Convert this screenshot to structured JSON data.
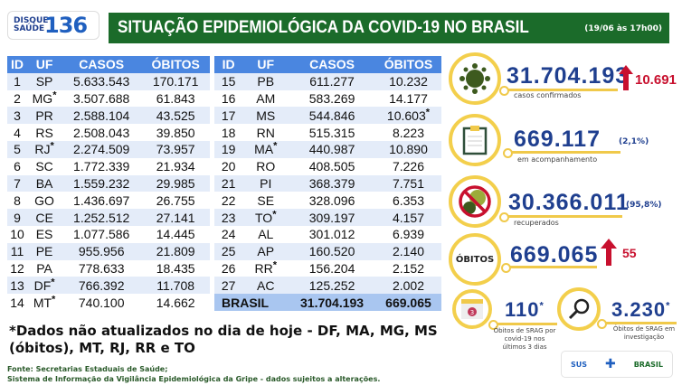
{
  "header": {
    "logo_text": "DISQUE SAÚDE",
    "logo_number": "136",
    "title": "SITUAÇÃO EPIDEMIOLÓGICA DA COVID-19 NO BRASIL",
    "date": "(19/06 às 17h00)"
  },
  "table": {
    "columns": [
      "ID",
      "UF",
      "CASOS",
      "ÓBITOS"
    ],
    "left": [
      {
        "id": "1",
        "uf": "SP",
        "casos": "5.633.543",
        "obitos": "170.171"
      },
      {
        "id": "2",
        "uf": "MG",
        "uf_mark": "*",
        "casos": "3.507.688",
        "obitos": "61.843"
      },
      {
        "id": "3",
        "uf": "PR",
        "casos": "2.588.104",
        "obitos": "43.525"
      },
      {
        "id": "4",
        "uf": "RS",
        "casos": "2.508.043",
        "obitos": "39.850"
      },
      {
        "id": "5",
        "uf": "RJ",
        "uf_mark": "*",
        "casos": "2.274.509",
        "obitos": "73.957"
      },
      {
        "id": "6",
        "uf": "SC",
        "casos": "1.772.339",
        "obitos": "21.934"
      },
      {
        "id": "7",
        "uf": "BA",
        "casos": "1.559.232",
        "obitos": "29.985"
      },
      {
        "id": "8",
        "uf": "GO",
        "casos": "1.436.697",
        "obitos": "26.755"
      },
      {
        "id": "9",
        "uf": "CE",
        "casos": "1.252.512",
        "obitos": "27.141"
      },
      {
        "id": "10",
        "uf": "ES",
        "casos": "1.077.586",
        "obitos": "14.445"
      },
      {
        "id": "11",
        "uf": "PE",
        "casos": "955.956",
        "obitos": "21.809"
      },
      {
        "id": "12",
        "uf": "PA",
        "casos": "778.633",
        "obitos": "18.435"
      },
      {
        "id": "13",
        "uf": "DF",
        "uf_mark": "*",
        "casos": "766.392",
        "obitos": "11.708"
      },
      {
        "id": "14",
        "uf": "MT",
        "uf_mark": "*",
        "casos": "740.100",
        "obitos": "14.662"
      }
    ],
    "right": [
      {
        "id": "15",
        "uf": "PB",
        "casos": "611.277",
        "obitos": "10.232"
      },
      {
        "id": "16",
        "uf": "AM",
        "casos": "583.269",
        "obitos": "14.177"
      },
      {
        "id": "17",
        "uf": "MS",
        "casos": "544.846",
        "obitos": "10.603",
        "obitos_mark": "*"
      },
      {
        "id": "18",
        "uf": "RN",
        "casos": "515.315",
        "obitos": "8.223"
      },
      {
        "id": "19",
        "uf": "MA",
        "uf_mark": "*",
        "casos": "440.987",
        "obitos": "10.890"
      },
      {
        "id": "20",
        "uf": "RO",
        "casos": "408.505",
        "obitos": "7.226"
      },
      {
        "id": "21",
        "uf": "PI",
        "casos": "368.379",
        "obitos": "7.751"
      },
      {
        "id": "22",
        "uf": "SE",
        "casos": "328.096",
        "obitos": "6.353"
      },
      {
        "id": "23",
        "uf": "TO",
        "uf_mark": "*",
        "casos": "309.197",
        "obitos": "4.157"
      },
      {
        "id": "24",
        "uf": "AL",
        "casos": "301.012",
        "obitos": "6.939"
      },
      {
        "id": "25",
        "uf": "AP",
        "casos": "160.520",
        "obitos": "2.140"
      },
      {
        "id": "26",
        "uf": "RR",
        "uf_mark": "*",
        "casos": "156.204",
        "obitos": "2.152"
      },
      {
        "id": "27",
        "uf": "AC",
        "casos": "125.252",
        "obitos": "2.002"
      }
    ],
    "total": {
      "label": "BRASIL",
      "casos": "31.704.193",
      "obitos": "669.065"
    }
  },
  "stats": {
    "confirmed": {
      "value": "31.704.193",
      "label": "casos confirmados",
      "increase": "10.691",
      "icon": "virus-icon"
    },
    "monitoring": {
      "value": "669.117",
      "pct": "(2,1%)",
      "label": "em acompanhamento",
      "icon": "clipboard-icon"
    },
    "recovered": {
      "value": "30.366.011",
      "pct": "(95,8%)",
      "label": "recuperados",
      "icon": "no-virus-icon"
    },
    "deaths": {
      "circle_label": "ÓBITOS",
      "value": "669.065",
      "increase": "55"
    },
    "srag_recent": {
      "value": "110",
      "mark": "*",
      "label": "Óbitos de SRAG por covid-19 nos últimos 3 dias",
      "icon": "calendar-icon",
      "calendar_day": "3"
    },
    "srag_investigation": {
      "value": "3.230",
      "mark": "*",
      "label": "Óbitos de SRAG em investigação",
      "icon": "magnifier-icon"
    }
  },
  "colors": {
    "green": "#1b6b2a",
    "blue": "#1f3f8f",
    "header_blue": "#4a86e0",
    "yellow": "#f3cf4c",
    "red": "#c8102e"
  },
  "note": "*Dados não atualizados no dia de hoje - DF, MA, MG, MS (óbitos), MT, RJ, RR e TO",
  "source": [
    "Fonte: Secretarias Estaduais de Saúde;",
    "Sistema de Informação da Vigilância Epidemiológica da Gripe - dados sujeitos a alterações."
  ],
  "footer": {
    "sus": "SUS",
    "brasil": "BRASIL"
  }
}
